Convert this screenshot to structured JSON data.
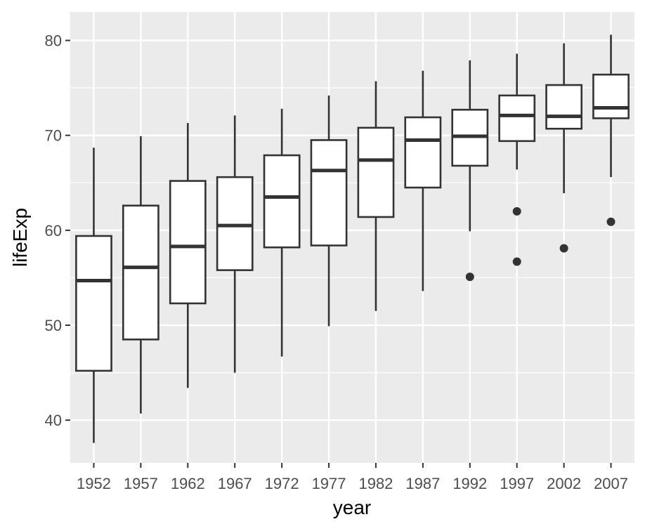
{
  "chart_data": {
    "type": "box",
    "xlabel": "year",
    "ylabel": "lifeExp",
    "ylim": [
      35.5,
      83
    ],
    "yticks": [
      40,
      50,
      60,
      70,
      80
    ],
    "grid": true,
    "categories": [
      "1952",
      "1957",
      "1962",
      "1967",
      "1972",
      "1977",
      "1982",
      "1987",
      "1992",
      "1997",
      "2002",
      "2007"
    ],
    "boxes": [
      {
        "min": 37.6,
        "q1": 45.2,
        "median": 54.7,
        "q3": 59.4,
        "max": 68.7,
        "outliers": []
      },
      {
        "min": 40.7,
        "q1": 48.5,
        "median": 56.1,
        "q3": 62.6,
        "max": 69.9,
        "outliers": []
      },
      {
        "min": 43.4,
        "q1": 52.3,
        "median": 58.3,
        "q3": 65.2,
        "max": 71.3,
        "outliers": []
      },
      {
        "min": 45.0,
        "q1": 55.8,
        "median": 60.5,
        "q3": 65.6,
        "max": 72.1,
        "outliers": []
      },
      {
        "min": 46.7,
        "q1": 58.2,
        "median": 63.5,
        "q3": 67.9,
        "max": 72.8,
        "outliers": []
      },
      {
        "min": 49.9,
        "q1": 58.4,
        "median": 66.3,
        "q3": 69.5,
        "max": 74.2,
        "outliers": []
      },
      {
        "min": 51.5,
        "q1": 61.4,
        "median": 67.4,
        "q3": 70.8,
        "max": 75.7,
        "outliers": []
      },
      {
        "min": 53.6,
        "q1": 64.5,
        "median": 69.5,
        "q3": 71.9,
        "max": 76.8,
        "outliers": []
      },
      {
        "min": 59.9,
        "q1": 66.8,
        "median": 69.9,
        "q3": 72.7,
        "max": 77.9,
        "outliers": [
          55.1
        ]
      },
      {
        "min": 66.4,
        "q1": 69.4,
        "median": 72.1,
        "q3": 74.2,
        "max": 78.6,
        "outliers": [
          62.0,
          56.7
        ]
      },
      {
        "min": 63.9,
        "q1": 70.7,
        "median": 72.0,
        "q3": 75.3,
        "max": 79.7,
        "outliers": [
          58.1
        ]
      },
      {
        "min": 65.6,
        "q1": 71.8,
        "median": 72.9,
        "q3": 76.4,
        "max": 80.6,
        "outliers": [
          60.9
        ]
      }
    ]
  }
}
